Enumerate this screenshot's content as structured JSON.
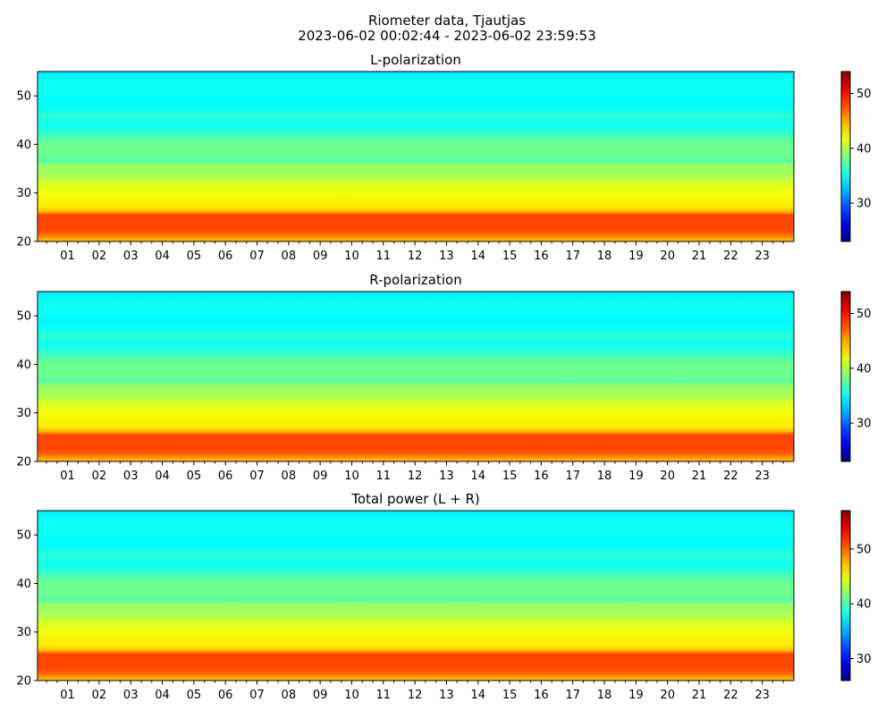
{
  "figure": {
    "suptitle_line1": "Riometer data, Tjautjas",
    "suptitle_line2": "2023-06-02 00:02:44 - 2023-06-02 23:59:53"
  },
  "chart_data": [
    {
      "type": "heatmap",
      "title": "L-polarization",
      "xlabel": "",
      "ylabel": "",
      "x_range_hours": [
        0.05,
        24.0
      ],
      "x_tick_labels": [
        "01",
        "02",
        "03",
        "04",
        "05",
        "06",
        "07",
        "08",
        "09",
        "10",
        "11",
        "12",
        "13",
        "14",
        "15",
        "16",
        "17",
        "18",
        "19",
        "20",
        "21",
        "22",
        "23"
      ],
      "x_ticks_hours": [
        1,
        2,
        3,
        4,
        5,
        6,
        7,
        8,
        9,
        10,
        11,
        12,
        13,
        14,
        15,
        16,
        17,
        18,
        19,
        20,
        21,
        22,
        23
      ],
      "ylim": [
        20,
        55
      ],
      "y_ticks": [
        20,
        30,
        40,
        50
      ],
      "colormap": "jet",
      "colorbar_range": [
        23,
        54
      ],
      "colorbar_ticks": [
        30,
        40,
        50
      ],
      "y_profile": [
        {
          "y": 20,
          "value": 44
        },
        {
          "y": 21.5,
          "value": 47
        },
        {
          "y": 22.5,
          "value": 48
        },
        {
          "y": 25.5,
          "value": 48
        },
        {
          "y": 26,
          "value": 45
        },
        {
          "y": 27,
          "value": 43
        },
        {
          "y": 30,
          "value": 42
        },
        {
          "y": 32.5,
          "value": 41
        },
        {
          "y": 33,
          "value": 40
        },
        {
          "y": 36,
          "value": 39
        },
        {
          "y": 36.5,
          "value": 37
        },
        {
          "y": 37.5,
          "value": 38
        },
        {
          "y": 40,
          "value": 38
        },
        {
          "y": 41.5,
          "value": 37
        },
        {
          "y": 42.5,
          "value": 36
        },
        {
          "y": 44,
          "value": 35
        },
        {
          "y": 46,
          "value": 36
        },
        {
          "y": 47,
          "value": 35
        },
        {
          "y": 49,
          "value": 34.5
        },
        {
          "y": 51,
          "value": 35
        },
        {
          "y": 53,
          "value": 35
        },
        {
          "y": 55,
          "value": 34
        }
      ]
    },
    {
      "type": "heatmap",
      "title": "R-polarization",
      "xlabel": "",
      "ylabel": "",
      "x_range_hours": [
        0.05,
        24.0
      ],
      "x_tick_labels": [
        "01",
        "02",
        "03",
        "04",
        "05",
        "06",
        "07",
        "08",
        "09",
        "10",
        "11",
        "12",
        "13",
        "14",
        "15",
        "16",
        "17",
        "18",
        "19",
        "20",
        "21",
        "22",
        "23"
      ],
      "x_ticks_hours": [
        1,
        2,
        3,
        4,
        5,
        6,
        7,
        8,
        9,
        10,
        11,
        12,
        13,
        14,
        15,
        16,
        17,
        18,
        19,
        20,
        21,
        22,
        23
      ],
      "ylim": [
        20,
        55
      ],
      "y_ticks": [
        20,
        30,
        40,
        50
      ],
      "colormap": "jet",
      "colorbar_range": [
        23,
        54
      ],
      "colorbar_ticks": [
        30,
        40,
        50
      ],
      "y_profile": [
        {
          "y": 20,
          "value": 44
        },
        {
          "y": 21.5,
          "value": 47
        },
        {
          "y": 22.5,
          "value": 48
        },
        {
          "y": 25.5,
          "value": 48
        },
        {
          "y": 26,
          "value": 45
        },
        {
          "y": 27,
          "value": 43
        },
        {
          "y": 30,
          "value": 42
        },
        {
          "y": 32.5,
          "value": 41
        },
        {
          "y": 33,
          "value": 40
        },
        {
          "y": 36,
          "value": 39
        },
        {
          "y": 36.5,
          "value": 37
        },
        {
          "y": 37.5,
          "value": 38
        },
        {
          "y": 40,
          "value": 38
        },
        {
          "y": 41.5,
          "value": 37
        },
        {
          "y": 42.5,
          "value": 36
        },
        {
          "y": 44,
          "value": 35
        },
        {
          "y": 46,
          "value": 36
        },
        {
          "y": 47,
          "value": 35
        },
        {
          "y": 49,
          "value": 34.5
        },
        {
          "y": 51,
          "value": 35
        },
        {
          "y": 53,
          "value": 35
        },
        {
          "y": 55,
          "value": 34
        }
      ]
    },
    {
      "type": "heatmap",
      "title": "Total power (L + R)",
      "xlabel": "",
      "ylabel": "",
      "x_range_hours": [
        0.05,
        24.0
      ],
      "x_tick_labels": [
        "01",
        "02",
        "03",
        "04",
        "05",
        "06",
        "07",
        "08",
        "09",
        "10",
        "11",
        "12",
        "13",
        "14",
        "15",
        "16",
        "17",
        "18",
        "19",
        "20",
        "21",
        "22",
        "23"
      ],
      "x_ticks_hours": [
        1,
        2,
        3,
        4,
        5,
        6,
        7,
        8,
        9,
        10,
        11,
        12,
        13,
        14,
        15,
        16,
        17,
        18,
        19,
        20,
        21,
        22,
        23
      ],
      "ylim": [
        20,
        55
      ],
      "y_ticks": [
        20,
        30,
        40,
        50
      ],
      "colormap": "jet",
      "colorbar_range": [
        26,
        57
      ],
      "colorbar_ticks": [
        30,
        40,
        50
      ],
      "y_profile": [
        {
          "y": 20,
          "value": 47
        },
        {
          "y": 21.5,
          "value": 50
        },
        {
          "y": 22.5,
          "value": 51
        },
        {
          "y": 25.5,
          "value": 51
        },
        {
          "y": 26,
          "value": 48
        },
        {
          "y": 27,
          "value": 46
        },
        {
          "y": 30,
          "value": 45
        },
        {
          "y": 32.5,
          "value": 44
        },
        {
          "y": 33,
          "value": 43
        },
        {
          "y": 36,
          "value": 42
        },
        {
          "y": 36.5,
          "value": 40
        },
        {
          "y": 37.5,
          "value": 41
        },
        {
          "y": 40,
          "value": 41
        },
        {
          "y": 41.5,
          "value": 40
        },
        {
          "y": 42.5,
          "value": 39
        },
        {
          "y": 44,
          "value": 38
        },
        {
          "y": 46,
          "value": 39
        },
        {
          "y": 47,
          "value": 38
        },
        {
          "y": 49,
          "value": 37.5
        },
        {
          "y": 51,
          "value": 38
        },
        {
          "y": 53,
          "value": 38
        },
        {
          "y": 55,
          "value": 37
        }
      ]
    }
  ]
}
